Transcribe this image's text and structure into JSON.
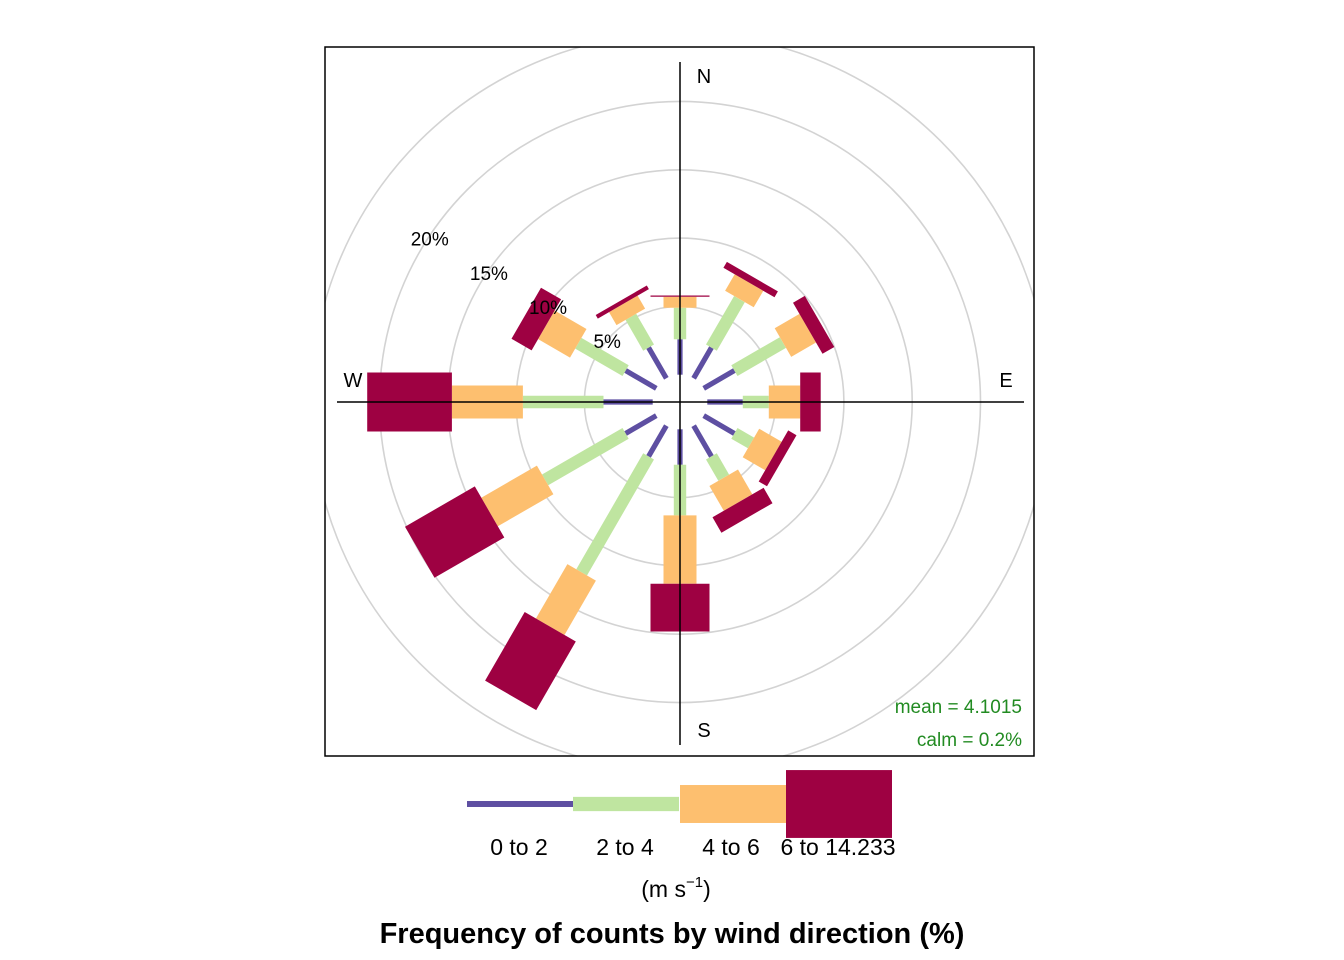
{
  "chart_data": {
    "type": "windrose",
    "title": "Frequency of counts by wind direction (%)",
    "unit_label_prefix": "(m s",
    "unit_label_exponent": "−1",
    "unit_label_suffix": ")",
    "compass": {
      "north": "N",
      "east": "E",
      "south": "S",
      "west": "W"
    },
    "ring_labels": [
      {
        "value": 5,
        "label": "5%"
      },
      {
        "value": 10,
        "label": "10%"
      },
      {
        "value": 15,
        "label": "15%"
      },
      {
        "value": 20,
        "label": "20%"
      }
    ],
    "ring_values": [
      5,
      10,
      15,
      20,
      25
    ],
    "stats": {
      "mean": "mean = 4.1015",
      "calm": "calm = 0.2%"
    },
    "speed_bins": [
      {
        "label": "0 to 2",
        "color": "#5e4fa2"
      },
      {
        "label": "2 to 4",
        "color": "#bfe5a0"
      },
      {
        "label": "4 to 6",
        "color": "#fdbf6f"
      },
      {
        "label": "6 to 14.233",
        "color": "#9e0142"
      }
    ],
    "calm_radius": 2,
    "directions": [
      0,
      30,
      60,
      90,
      120,
      150,
      180,
      210,
      240,
      270,
      300,
      330
    ],
    "cumulative_percent": [
      [
        2.6,
        4.9,
        5.7,
        5.8
      ],
      [
        2.6,
        6.7,
        8.1,
        8.6
      ],
      [
        2.6,
        6.7,
        8.8,
        9.8
      ],
      [
        2.6,
        4.5,
        6.8,
        8.3
      ],
      [
        2.6,
        4.0,
        5.9,
        6.6
      ],
      [
        2.6,
        4.4,
        6.5,
        7.8
      ],
      [
        2.6,
        6.3,
        11.3,
        14.8
      ],
      [
        2.6,
        12.4,
        17.0,
        22.8
      ],
      [
        2.6,
        9.4,
        14.1,
        20.0
      ],
      [
        3.6,
        9.5,
        14.7,
        20.9
      ],
      [
        2.6,
        6.6,
        9.3,
        11.0
      ],
      [
        2.6,
        5.2,
        6.3,
        6.6
      ]
    ],
    "grid": true,
    "legend_position": "bottom"
  }
}
